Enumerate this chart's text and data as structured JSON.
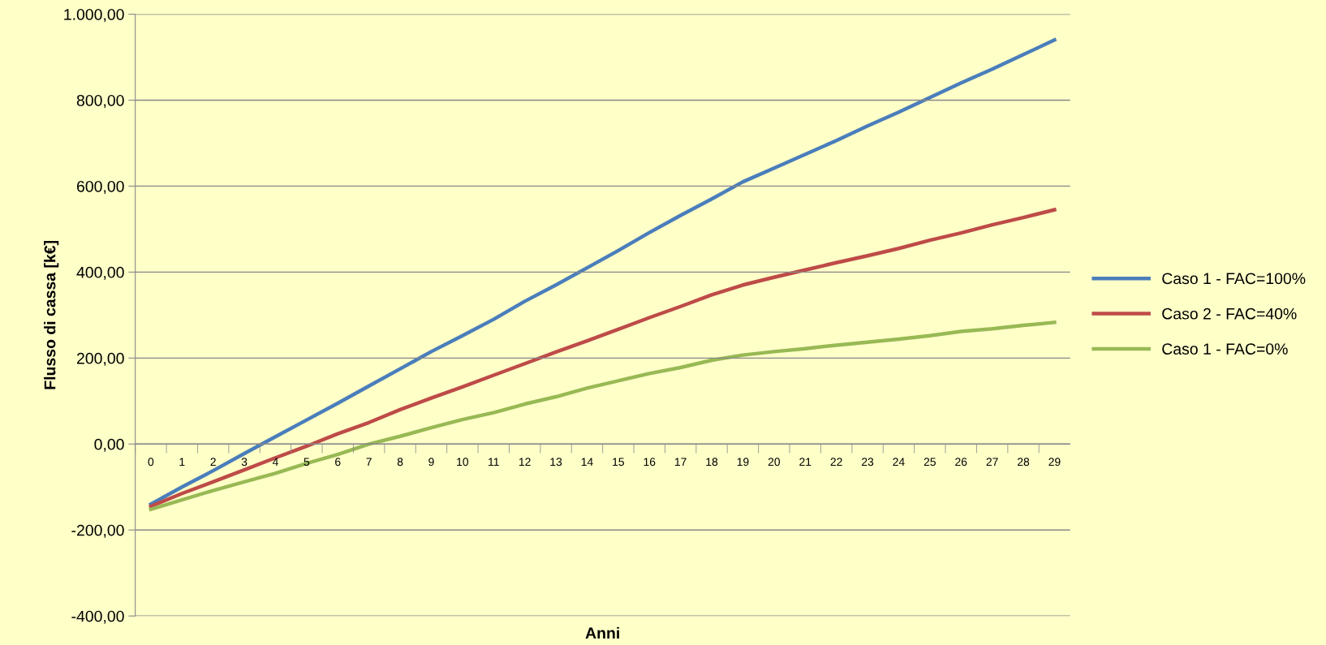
{
  "chart_data": {
    "type": "line",
    "xlabel": "Anni",
    "ylabel": "Flusso di cassa [k€]",
    "categories": [
      "0",
      "1",
      "2",
      "3",
      "4",
      "5",
      "6",
      "7",
      "8",
      "9",
      "10",
      "11",
      "12",
      "13",
      "14",
      "15",
      "16",
      "17",
      "18",
      "19",
      "20",
      "21",
      "22",
      "23",
      "24",
      "25",
      "26",
      "27",
      "28",
      "29"
    ],
    "series": [
      {
        "name": "Caso 1 - FAC=100%",
        "color": "#4a7ebb",
        "values": [
          -140,
          -100,
          -62,
          -22,
          17,
          56,
          95,
          135,
          175,
          215,
          252,
          290,
          332,
          370,
          410,
          450,
          492,
          532,
          570,
          610,
          642,
          674,
          706,
          740,
          772,
          806,
          840,
          872,
          906,
          940
        ]
      },
      {
        "name": "Caso 2 - FAC=40%",
        "color": "#be4b48",
        "values": [
          -145,
          -115,
          -88,
          -60,
          -32,
          -5,
          24,
          50,
          80,
          107,
          133,
          160,
          187,
          214,
          240,
          267,
          294,
          320,
          347,
          370,
          388,
          405,
          422,
          438,
          455,
          474,
          491,
          510,
          527,
          545
        ]
      },
      {
        "name": "Caso 1 - FAC=0%",
        "color": "#98b954",
        "values": [
          -152,
          -130,
          -108,
          -88,
          -68,
          -45,
          -24,
          0,
          18,
          38,
          57,
          73,
          93,
          110,
          130,
          147,
          164,
          178,
          195,
          207,
          215,
          222,
          230,
          237,
          244,
          252,
          262,
          268,
          276,
          283
        ]
      }
    ],
    "ylim": [
      -400,
      1000
    ],
    "yticks": [
      {
        "value": -400,
        "label": "-400,00"
      },
      {
        "value": -200,
        "label": "-200,00"
      },
      {
        "value": 0,
        "label": "0,00"
      },
      {
        "value": 200,
        "label": "200,00"
      },
      {
        "value": 400,
        "label": "400,00"
      },
      {
        "value": 600,
        "label": "600,00"
      },
      {
        "value": 800,
        "label": "800,00"
      },
      {
        "value": 1000,
        "label": "1.000,00"
      }
    ],
    "grid": "y",
    "legend": "right",
    "marker": "none",
    "line_style": "solid"
  }
}
